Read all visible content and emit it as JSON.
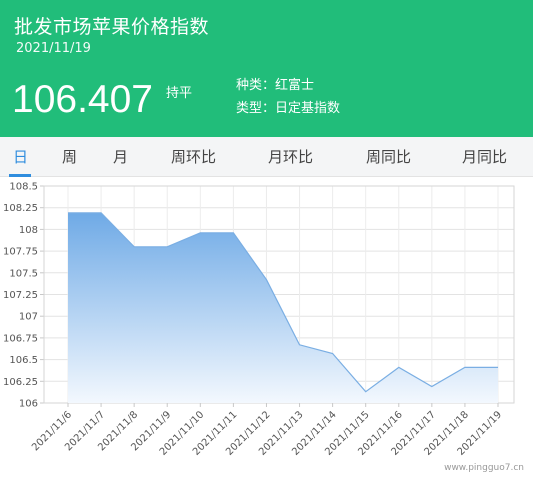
{
  "header": {
    "title": "批发市场苹果价格指数",
    "date": "2021/11/19",
    "price": "106.407",
    "change": "持平",
    "variety": "种类：红富士",
    "type": "类型：日定基指数"
  },
  "tabs": [
    "日",
    "周",
    "月",
    "周环比",
    "月环比",
    "周同比",
    "月同比"
  ],
  "active_tab": 0,
  "colors": {
    "header_bg": "#21bd7a",
    "accent": "#2f8dde",
    "line": "#7aaee3",
    "fill_top": "#6faae6",
    "fill_bottom": "#f3f8fe"
  },
  "watermark": "www.pingguo7.cn",
  "chart_data": {
    "type": "area",
    "x": [
      "2021/11/6",
      "2021/11/7",
      "2021/11/8",
      "2021/11/9",
      "2021/11/10",
      "2021/11/11",
      "2021/11/12",
      "2021/11/13",
      "2021/11/14",
      "2021/11/15",
      "2021/11/16",
      "2021/11/17",
      "2021/11/18",
      "2021/11/19"
    ],
    "series": [
      {
        "values": [
          108.19,
          108.19,
          107.8,
          107.8,
          107.96,
          107.96,
          107.42,
          106.67,
          106.57,
          106.13,
          106.41,
          106.19,
          106.41,
          106.41
        ]
      }
    ],
    "yticks": [
      "108.5",
      "108.25",
      "108",
      "107.75",
      "107.5",
      "107.25",
      "107",
      "106.75",
      "106.5",
      "106.25",
      "106"
    ],
    "ylim": [
      106,
      108.5
    ],
    "grid": true
  }
}
